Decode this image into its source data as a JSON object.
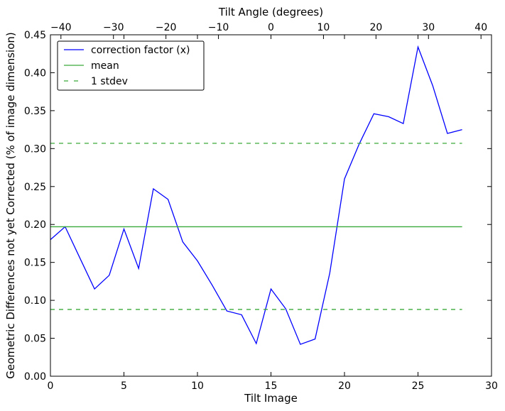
{
  "chart_data": {
    "type": "line",
    "xlabel": "Tilt Image",
    "ylabel": "Geometric Differences not yet Corrected (% of image dimension)",
    "x2label": "Tilt Angle (degrees)",
    "xlim": [
      0,
      30
    ],
    "ylim": [
      0,
      0.45
    ],
    "x2lim": [
      -42,
      42
    ],
    "x_ticks": [
      0,
      5,
      10,
      15,
      20,
      25,
      30
    ],
    "x_tick_labels": [
      "0",
      "5",
      "10",
      "15",
      "20",
      "25",
      "30"
    ],
    "y_ticks": [
      0,
      0.05,
      0.1,
      0.15,
      0.2,
      0.25,
      0.3,
      0.35,
      0.4,
      0.45
    ],
    "y_tick_labels": [
      "0.00",
      "0.05",
      "0.10",
      "0.15",
      "0.20",
      "0.25",
      "0.30",
      "0.35",
      "0.40",
      "0.45"
    ],
    "x2_ticks": [
      -40,
      -30,
      -20,
      -10,
      0,
      10,
      20,
      30,
      40
    ],
    "x2_tick_labels": [
      "−40",
      "−30",
      "−20",
      "−10",
      "0",
      "10",
      "20",
      "30",
      "40"
    ],
    "legend_position": "top-left",
    "grid": false,
    "series": [
      {
        "name": "correction factor (x)",
        "color": "#0000ff",
        "style": "solid",
        "x": [
          0,
          1,
          2,
          3,
          4,
          5,
          6,
          7,
          8,
          9,
          10,
          11,
          12,
          13,
          14,
          15,
          16,
          17,
          18,
          19,
          20,
          21,
          22,
          23,
          24,
          25,
          26,
          27,
          28
        ],
        "y": [
          0.18,
          0.197,
          0.156,
          0.115,
          0.133,
          0.194,
          0.142,
          0.247,
          0.233,
          0.177,
          0.152,
          0.12,
          0.086,
          0.081,
          0.043,
          0.115,
          0.089,
          0.042,
          0.049,
          0.136,
          0.26,
          0.306,
          0.346,
          0.342,
          0.333,
          0.434,
          0.383,
          0.32,
          0.325
        ]
      },
      {
        "name": "mean",
        "color": "#3aaa3a",
        "style": "solid",
        "x": [
          0,
          28
        ],
        "y": [
          0.197,
          0.197
        ]
      },
      {
        "name": "1 stdev",
        "color": "#3aaa3a",
        "style": "dashed",
        "x": [
          0,
          28,
          0,
          28
        ],
        "y": [
          0.307,
          0.307,
          0.088,
          0.088
        ]
      }
    ]
  }
}
